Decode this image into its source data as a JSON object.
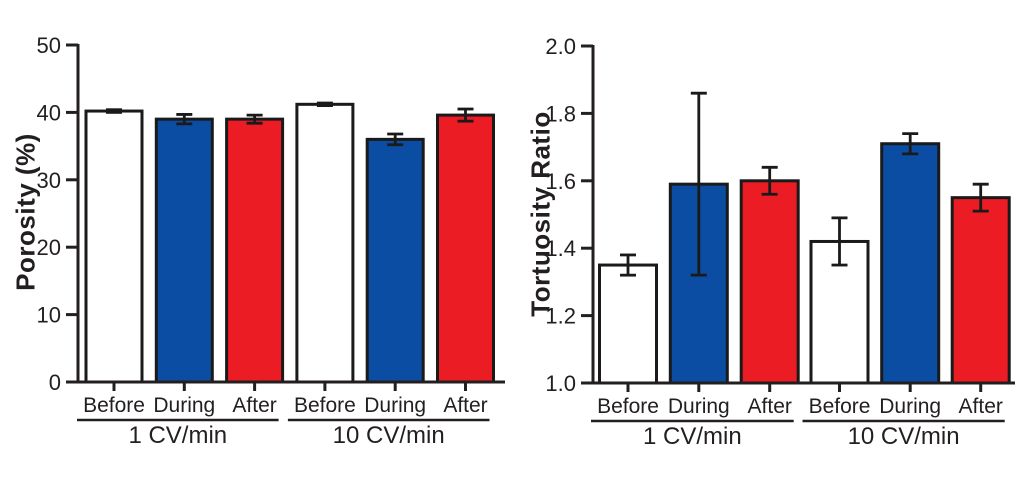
{
  "figure": {
    "background": "#ffffff",
    "text_color": "#231f20",
    "axis_color": "#231f20"
  },
  "colors": {
    "bar_white": "#ffffff",
    "bar_blue": "#0b4da2",
    "bar_red": "#ec1c24",
    "bar_outline": "#1a1a1a",
    "error_bar": "#1a1a1a"
  },
  "chart_data": [
    {
      "type": "bar",
      "title": "",
      "xlabel": "",
      "ylabel": "Porosity (%)",
      "ylim": [
        0,
        50
      ],
      "ytick_values": [
        0,
        10,
        20,
        30,
        40,
        50
      ],
      "ytick_labels": [
        "0",
        "10",
        "20",
        "30",
        "40",
        "50"
      ],
      "categories": [
        "Before",
        "During",
        "After",
        "Before",
        "During",
        "After"
      ],
      "group_labels": [
        "1 CV/min",
        "10 CV/min"
      ],
      "bar_fills": [
        "white",
        "blue",
        "red",
        "white",
        "blue",
        "red"
      ],
      "values": [
        40.2,
        39.0,
        39.0,
        41.2,
        36.0,
        39.6
      ],
      "errors": [
        0.2,
        0.7,
        0.6,
        0.2,
        0.8,
        0.9
      ],
      "grid": false,
      "legend": "none"
    },
    {
      "type": "bar",
      "title": "",
      "xlabel": "",
      "ylabel": "Tortuosity Ratio",
      "ylim": [
        1.0,
        2.0
      ],
      "ytick_values": [
        1.0,
        1.2,
        1.4,
        1.6,
        1.8,
        2.0
      ],
      "ytick_labels": [
        "1.0",
        "1.2",
        "1.4",
        "1.6",
        "1.8",
        "2.0"
      ],
      "categories": [
        "Before",
        "During",
        "After",
        "Before",
        "During",
        "After"
      ],
      "group_labels": [
        "1 CV/min",
        "10 CV/min"
      ],
      "bar_fills": [
        "white",
        "blue",
        "red",
        "white",
        "blue",
        "red"
      ],
      "values": [
        1.35,
        1.59,
        1.6,
        1.42,
        1.71,
        1.55
      ],
      "errors": [
        0.03,
        0.27,
        0.04,
        0.07,
        0.03,
        0.04
      ],
      "grid": false,
      "legend": "none"
    }
  ]
}
